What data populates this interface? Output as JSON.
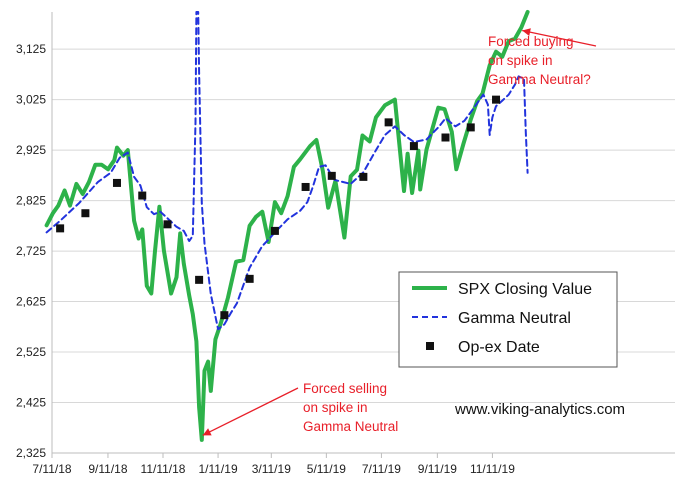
{
  "chart_data": {
    "type": "line",
    "title": "",
    "xlabel": "",
    "ylabel": "",
    "ylim": [
      2325,
      3200
    ],
    "grid": "horizontal",
    "legend_placement": "center-right",
    "x_ticks": [
      "7/11/18",
      "9/11/18",
      "11/11/18",
      "1/11/19",
      "3/11/19",
      "5/11/19",
      "7/11/19",
      "9/11/19",
      "11/11/19"
    ],
    "y_ticks": [
      2325,
      2425,
      2525,
      2625,
      2725,
      2825,
      2925,
      3025,
      3125
    ],
    "y_tick_labels": [
      "2,325",
      "2,425",
      "2,525",
      "2,625",
      "2,725",
      "2,825",
      "2,925",
      "3,025",
      "3,125"
    ],
    "series": [
      {
        "name": "SPX Closing Value",
        "style": "solid",
        "color": "#2db24a",
        "points": [
          [
            "2018-07-05",
            2776
          ],
          [
            "2018-07-12",
            2800
          ],
          [
            "2018-07-18",
            2815
          ],
          [
            "2018-07-25",
            2845
          ],
          [
            "2018-07-31",
            2815
          ],
          [
            "2018-08-07",
            2858
          ],
          [
            "2018-08-14",
            2838
          ],
          [
            "2018-08-21",
            2862
          ],
          [
            "2018-08-28",
            2896
          ],
          [
            "2018-09-04",
            2896
          ],
          [
            "2018-09-11",
            2887
          ],
          [
            "2018-09-18",
            2905
          ],
          [
            "2018-09-21",
            2930
          ],
          [
            "2018-09-28",
            2914
          ],
          [
            "2018-10-03",
            2925
          ],
          [
            "2018-10-10",
            2785
          ],
          [
            "2018-10-15",
            2750
          ],
          [
            "2018-10-19",
            2768
          ],
          [
            "2018-10-24",
            2656
          ],
          [
            "2018-10-29",
            2641
          ],
          [
            "2018-11-02",
            2723
          ],
          [
            "2018-11-07",
            2813
          ],
          [
            "2018-11-12",
            2726
          ],
          [
            "2018-11-20",
            2641
          ],
          [
            "2018-11-26",
            2673
          ],
          [
            "2018-11-30",
            2760
          ],
          [
            "2018-12-04",
            2700
          ],
          [
            "2018-12-10",
            2637
          ],
          [
            "2018-12-14",
            2600
          ],
          [
            "2018-12-18",
            2546
          ],
          [
            "2018-12-21",
            2416
          ],
          [
            "2018-12-24",
            2351
          ],
          [
            "2018-12-27",
            2488
          ],
          [
            "2018-12-31",
            2506
          ],
          [
            "2019-01-03",
            2448
          ],
          [
            "2019-01-08",
            2550
          ],
          [
            "2019-01-14",
            2582
          ],
          [
            "2019-01-22",
            2633
          ],
          [
            "2019-01-31",
            2704
          ],
          [
            "2019-02-08",
            2707
          ],
          [
            "2019-02-15",
            2775
          ],
          [
            "2019-02-22",
            2793
          ],
          [
            "2019-03-01",
            2803
          ],
          [
            "2019-03-08",
            2743
          ],
          [
            "2019-03-15",
            2822
          ],
          [
            "2019-03-22",
            2800
          ],
          [
            "2019-03-29",
            2834
          ],
          [
            "2019-04-05",
            2892
          ],
          [
            "2019-04-12",
            2907
          ],
          [
            "2019-04-23",
            2933
          ],
          [
            "2019-04-30",
            2945
          ],
          [
            "2019-05-07",
            2884
          ],
          [
            "2019-05-13",
            2811
          ],
          [
            "2019-05-21",
            2864
          ],
          [
            "2019-05-31",
            2752
          ],
          [
            "2019-06-07",
            2873
          ],
          [
            "2019-06-14",
            2886
          ],
          [
            "2019-06-20",
            2954
          ],
          [
            "2019-06-28",
            2942
          ],
          [
            "2019-07-05",
            2990
          ],
          [
            "2019-07-15",
            3014
          ],
          [
            "2019-07-26",
            3025
          ],
          [
            "2019-08-05",
            2844
          ],
          [
            "2019-08-09",
            2918
          ],
          [
            "2019-08-14",
            2840
          ],
          [
            "2019-08-21",
            2924
          ],
          [
            "2019-08-23",
            2847
          ],
          [
            "2019-08-30",
            2926
          ],
          [
            "2019-09-12",
            3009
          ],
          [
            "2019-09-19",
            3006
          ],
          [
            "2019-09-27",
            2961
          ],
          [
            "2019-10-02",
            2887
          ],
          [
            "2019-10-10",
            2938
          ],
          [
            "2019-10-18",
            2986
          ],
          [
            "2019-10-25",
            3022
          ],
          [
            "2019-10-31",
            3037
          ],
          [
            "2019-11-08",
            3093
          ],
          [
            "2019-11-15",
            3120
          ],
          [
            "2019-11-22",
            3110
          ],
          [
            "2019-11-29",
            3141
          ],
          [
            "2019-12-06",
            3146
          ],
          [
            "2019-12-13",
            3168
          ],
          [
            "2019-12-20",
            3221
          ]
        ]
      },
      {
        "name": "Gamma Neutral",
        "style": "dashed",
        "color": "#2233dd",
        "points": [
          [
            "2018-07-05",
            2762
          ],
          [
            "2018-07-20",
            2785
          ],
          [
            "2018-08-10",
            2820
          ],
          [
            "2018-08-31",
            2862
          ],
          [
            "2018-09-14",
            2880
          ],
          [
            "2018-09-24",
            2910
          ],
          [
            "2018-10-03",
            2920
          ],
          [
            "2018-10-10",
            2872
          ],
          [
            "2018-10-17",
            2855
          ],
          [
            "2018-10-24",
            2812
          ],
          [
            "2018-11-01",
            2798
          ],
          [
            "2018-11-08",
            2803
          ],
          [
            "2018-11-16",
            2790
          ],
          [
            "2018-11-26",
            2773
          ],
          [
            "2018-12-04",
            2765
          ],
          [
            "2018-12-10",
            2745
          ],
          [
            "2018-12-14",
            2755
          ],
          [
            "2018-12-17",
            2980
          ],
          [
            "2018-12-18",
            3300
          ],
          [
            "2018-12-20",
            3300
          ],
          [
            "2018-12-21",
            3080
          ],
          [
            "2018-12-24",
            2820
          ],
          [
            "2018-12-27",
            2740
          ],
          [
            "2019-01-03",
            2640
          ],
          [
            "2019-01-11",
            2570
          ],
          [
            "2019-01-18",
            2580
          ],
          [
            "2019-01-25",
            2602
          ],
          [
            "2019-02-01",
            2622
          ],
          [
            "2019-02-15",
            2692
          ],
          [
            "2019-03-01",
            2735
          ],
          [
            "2019-03-08",
            2748
          ],
          [
            "2019-03-15",
            2762
          ],
          [
            "2019-03-29",
            2788
          ],
          [
            "2019-04-12",
            2805
          ],
          [
            "2019-04-20",
            2822
          ],
          [
            "2019-04-26",
            2852
          ],
          [
            "2019-05-03",
            2892
          ],
          [
            "2019-05-10",
            2895
          ],
          [
            "2019-05-20",
            2866
          ],
          [
            "2019-06-07",
            2858
          ],
          [
            "2019-06-21",
            2881
          ],
          [
            "2019-07-05",
            2925
          ],
          [
            "2019-07-15",
            2955
          ],
          [
            "2019-07-26",
            2972
          ],
          [
            "2019-08-05",
            2955
          ],
          [
            "2019-08-16",
            2941
          ],
          [
            "2019-08-30",
            2946
          ],
          [
            "2019-09-13",
            2972
          ],
          [
            "2019-09-20",
            2988
          ],
          [
            "2019-10-01",
            2972
          ],
          [
            "2019-10-11",
            2983
          ],
          [
            "2019-10-22",
            3010
          ],
          [
            "2019-11-01",
            3035
          ],
          [
            "2019-11-06",
            3015
          ],
          [
            "2019-11-08",
            2955
          ],
          [
            "2019-11-11",
            2990
          ],
          [
            "2019-11-15",
            3012
          ],
          [
            "2019-11-22",
            3023
          ],
          [
            "2019-11-29",
            3035
          ],
          [
            "2019-12-06",
            3055
          ],
          [
            "2019-12-10",
            3071
          ],
          [
            "2019-12-16",
            3066
          ],
          [
            "2019-12-18",
            2960
          ],
          [
            "2019-12-20",
            2880
          ]
        ]
      },
      {
        "name": "Op-ex Date",
        "style": "marker",
        "color": "#111111",
        "points": [
          [
            "2018-07-20",
            2770
          ],
          [
            "2018-08-17",
            2800
          ],
          [
            "2018-09-21",
            2860
          ],
          [
            "2018-10-19",
            2835
          ],
          [
            "2018-11-16",
            2778
          ],
          [
            "2018-12-21",
            2668
          ],
          [
            "2019-01-18",
            2598
          ],
          [
            "2019-02-15",
            2670
          ],
          [
            "2019-03-15",
            2765
          ],
          [
            "2019-04-18",
            2852
          ],
          [
            "2019-05-17",
            2874
          ],
          [
            "2019-06-21",
            2872
          ],
          [
            "2019-07-19",
            2980
          ],
          [
            "2019-08-16",
            2933
          ],
          [
            "2019-09-20",
            2950
          ],
          [
            "2019-10-18",
            2970
          ],
          [
            "2019-11-15",
            3025
          ]
        ]
      }
    ],
    "annotations": [
      {
        "lines": [
          "Forced buying",
          "on spike in",
          "Gamma Neutral?"
        ],
        "arrow_to": [
          "2019-12-14",
          3162
        ]
      },
      {
        "lines": [
          "Forced selling",
          "on spike in",
          "Gamma Neutral"
        ],
        "arrow_to": [
          "2018-12-25",
          2360
        ]
      }
    ],
    "watermark": "www.viking-analytics.com"
  }
}
